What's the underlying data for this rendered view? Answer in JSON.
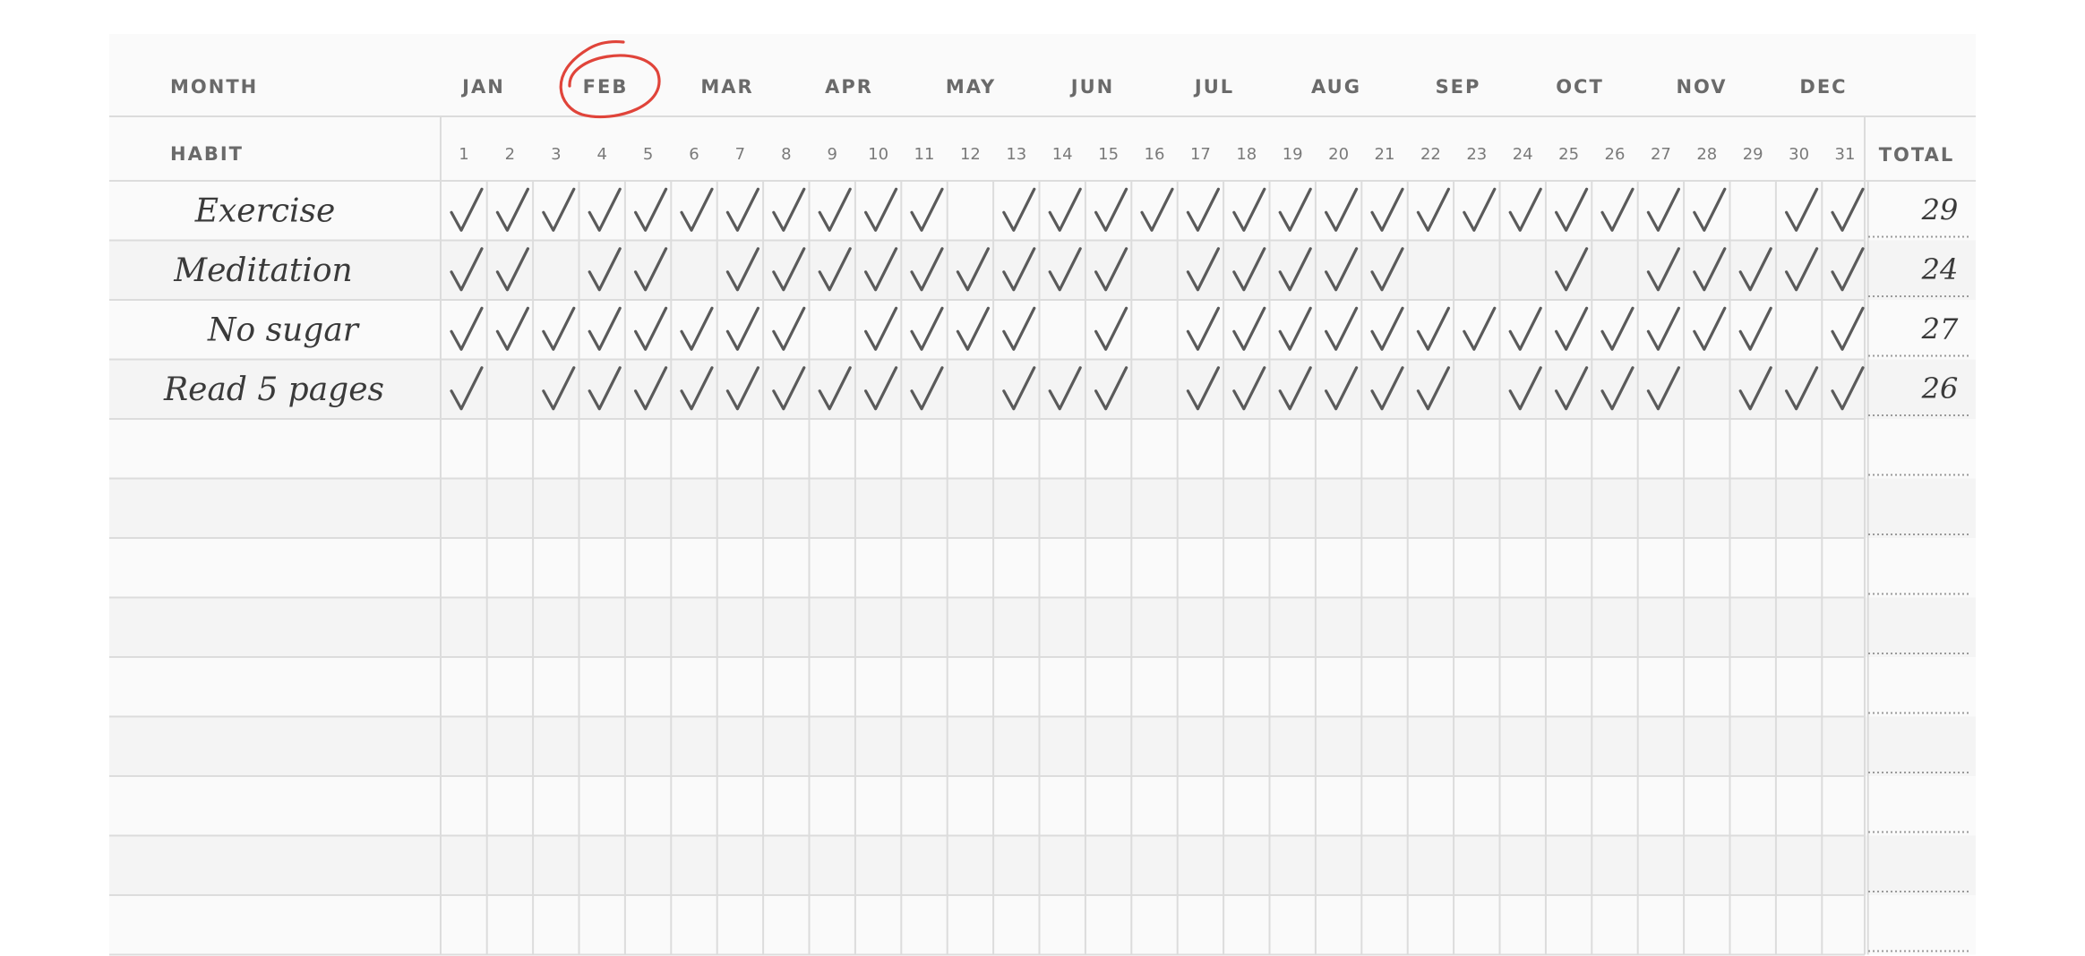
{
  "header": {
    "month_label": "MONTH",
    "habit_label": "HABIT",
    "total_label": "TOTAL",
    "months": [
      "JAN",
      "FEB",
      "MAR",
      "APR",
      "MAY",
      "JUN",
      "JUL",
      "AUG",
      "SEP",
      "OCT",
      "NOV",
      "DEC"
    ],
    "selected_month": "FEB",
    "selection_color": "#e0443a",
    "days": [
      "1",
      "2",
      "3",
      "4",
      "5",
      "6",
      "7",
      "8",
      "9",
      "10",
      "11",
      "12",
      "13",
      "14",
      "15",
      "16",
      "17",
      "18",
      "19",
      "20",
      "21",
      "22",
      "23",
      "24",
      "25",
      "26",
      "27",
      "28",
      "29",
      "30",
      "31"
    ]
  },
  "habits": [
    {
      "name": "Exercise",
      "total": "29",
      "checked_days": [
        1,
        2,
        3,
        4,
        5,
        6,
        7,
        8,
        9,
        10,
        11,
        13,
        14,
        15,
        16,
        17,
        18,
        19,
        20,
        21,
        22,
        23,
        24,
        25,
        26,
        27,
        28,
        30,
        31
      ]
    },
    {
      "name": "Meditation",
      "total": "24",
      "checked_days": [
        1,
        2,
        4,
        5,
        7,
        8,
        9,
        10,
        11,
        12,
        13,
        14,
        15,
        17,
        18,
        19,
        20,
        21,
        25,
        27,
        28,
        29,
        30,
        31
      ]
    },
    {
      "name": "No sugar",
      "total": "27",
      "checked_days": [
        1,
        2,
        3,
        4,
        5,
        6,
        7,
        8,
        10,
        11,
        12,
        13,
        15,
        17,
        18,
        19,
        20,
        21,
        22,
        23,
        24,
        25,
        26,
        27,
        28,
        29,
        31
      ]
    },
    {
      "name": "Read 5 pages",
      "total": "26",
      "checked_days": [
        1,
        3,
        4,
        5,
        6,
        7,
        8,
        9,
        10,
        11,
        13,
        14,
        15,
        17,
        18,
        19,
        20,
        21,
        22,
        24,
        25,
        26,
        27,
        29,
        30,
        31
      ]
    }
  ],
  "empty_rows": 9,
  "icons": {
    "check": "checkmark-icon",
    "selection": "hand-drawn-circle-icon"
  }
}
